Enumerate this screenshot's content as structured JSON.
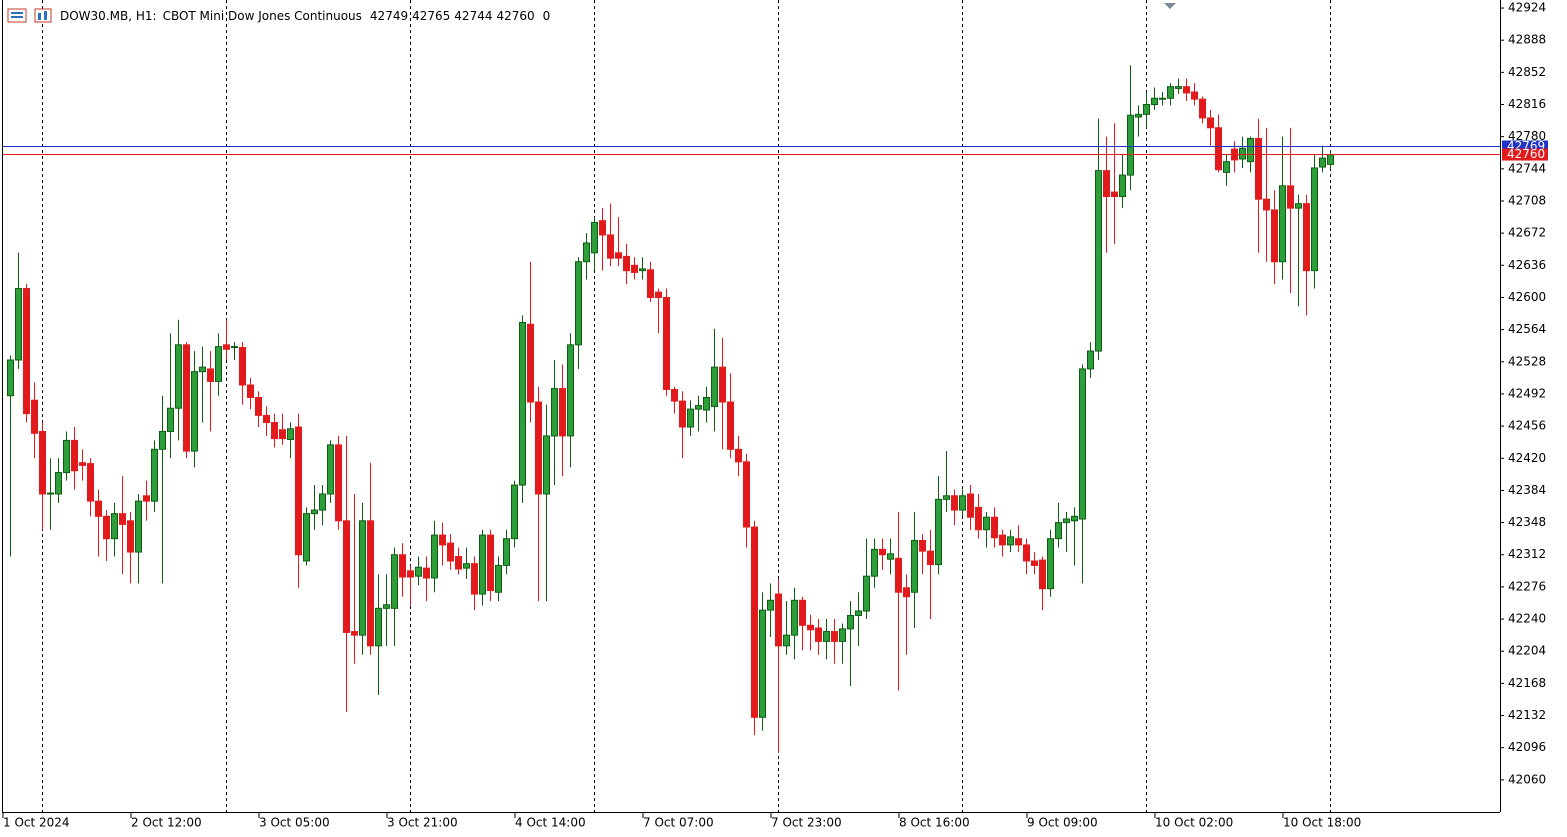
{
  "chart_data": {
    "type": "candlestick",
    "symbol": "DOW30.MB, H1:",
    "description": "CBOT Mini Dow Jones Continuous",
    "spread": 0,
    "up_color": "#2e9e3a",
    "up_outline": "#0b5e12",
    "down_color": "#e31a1c",
    "ylim": [
      42024,
      42933
    ],
    "yticks": [
      42924,
      42888,
      42852,
      42816,
      42780,
      42744,
      42708,
      42672,
      42636,
      42600,
      42564,
      42528,
      42492,
      42456,
      42420,
      42384,
      42348,
      42312,
      42276,
      42240,
      42204,
      42168,
      42132,
      42096,
      42060
    ],
    "price_lines": [
      {
        "value": 42769,
        "color": "#1e32c8"
      },
      {
        "value": 42760,
        "color": "#e31a1c"
      }
    ],
    "categories": [
      "1 Oct 2024",
      null,
      null,
      null,
      null,
      null,
      null,
      null,
      null,
      null,
      null,
      null,
      null,
      null,
      null,
      null,
      "2 Oct 12:00",
      null,
      null,
      null,
      null,
      null,
      null,
      null,
      null,
      null,
      null,
      null,
      null,
      null,
      null,
      null,
      "3 Oct 05:00",
      null,
      null,
      null,
      null,
      null,
      null,
      null,
      null,
      null,
      null,
      null,
      null,
      null,
      null,
      null,
      "3 Oct 21:00",
      null,
      null,
      null,
      null,
      null,
      null,
      null,
      null,
      null,
      null,
      null,
      null,
      null,
      null,
      null,
      "4 Oct 14:00",
      null,
      null,
      null,
      null,
      null,
      null,
      null,
      null,
      null,
      null,
      null,
      null,
      null,
      null,
      null,
      "7 Oct 07:00",
      null,
      null,
      null,
      null,
      null,
      null,
      null,
      null,
      null,
      null,
      null,
      null,
      null,
      null,
      null,
      "7 Oct 23:00",
      null,
      null,
      null,
      null,
      null,
      null,
      null,
      null,
      null,
      null,
      null,
      null,
      null,
      null,
      null,
      "8 Oct 16:00",
      null,
      null,
      null,
      null,
      null,
      null,
      null,
      null,
      null,
      null,
      null,
      null,
      null,
      null,
      null,
      "9 Oct 09:00",
      null,
      null,
      null,
      null,
      null,
      null,
      null,
      null,
      null,
      null,
      null,
      null,
      null,
      null,
      null,
      "10 Oct 02:00",
      null,
      null,
      null,
      null,
      null,
      null,
      null,
      null,
      null,
      null,
      null,
      null,
      null,
      null,
      null,
      "10 Oct 18:00",
      null,
      null,
      null,
      null,
      null
    ],
    "open": [
      42490,
      42530,
      42610,
      42485,
      42450,
      42380,
      42380,
      42404,
      42440,
      42415,
      42414,
      42372,
      42355,
      42330,
      42358,
      42350,
      42315,
      42378,
      42372,
      42430,
      42450,
      42476,
      42547,
      42428,
      42517,
      42520,
      42506,
      42547,
      42544,
      42544,
      42502,
      42488,
      42468,
      42460,
      42452,
      42441,
      42455,
      42305,
      42358,
      42362,
      42380,
      42435,
      42350,
      42226,
      42222,
      42350,
      42210,
      42252,
      42252,
      42312,
      42294,
      42288,
      42297,
      42286,
      42334,
      42325,
      42310,
      42297,
      42302,
      42268,
      42334,
      42270,
      42300,
      42330,
      42390,
      42570,
      42483,
      42380,
      42445,
      42498,
      42445,
      42547,
      42640,
      42650,
      42686,
      42670,
      42650,
      42646,
      42636,
      42630,
      42631,
      42606,
      42600,
      42497,
      42484,
      42455,
      42475,
      42474,
      42478,
      42522,
      42483,
      42430,
      42416,
      42343,
      42130,
      42250,
      42268,
      42210,
      42222,
      42261,
      42233,
      42230,
      42215,
      42226,
      42215,
      42229,
      42244,
      42249,
      42288,
      42318,
      42307,
      42308,
      42275,
      42270,
      42328,
      42316,
      42301,
      42374,
      42378,
      42362,
      42380,
      42365,
      42340,
      42354,
      42334,
      42323,
      42330,
      42323,
      42305,
      42306,
      42274,
      42330,
      42348,
      42350,
      42352,
      42520,
      42540,
      42742,
      42718,
      42713,
      42737,
      42802,
      42805,
      42816,
      42822,
      42823,
      42834,
      42836,
      42830,
      42822,
      42801,
      42790,
      42740,
      42766,
      42755,
      42752,
      42778,
      42710,
      42698,
      42640,
      42725,
      42700,
      42705,
      42630,
      42746,
      42749
    ],
    "high": [
      42535,
      42650,
      42615,
      42505,
      42460,
      42420,
      42420,
      42450,
      42455,
      42430,
      42420,
      42385,
      42362,
      42370,
      42400,
      42360,
      42380,
      42395,
      42440,
      42490,
      42560,
      42575,
      42550,
      42540,
      42545,
      42540,
      42560,
      42575,
      42550,
      42550,
      42510,
      42495,
      42478,
      42470,
      42470,
      42460,
      42470,
      42365,
      42390,
      42390,
      42440,
      42445,
      42445,
      42380,
      42370,
      42415,
      42290,
      42290,
      42320,
      42325,
      42300,
      42310,
      42310,
      42350,
      42348,
      42335,
      42320,
      42320,
      42310,
      42340,
      42340,
      42310,
      42340,
      42395,
      42580,
      42640,
      42500,
      42480,
      42530,
      42525,
      42560,
      42645,
      42672,
      42690,
      42700,
      42705,
      42690,
      42660,
      42645,
      42645,
      42640,
      42610,
      42610,
      42500,
      42495,
      42485,
      42490,
      42500,
      42565,
      42555,
      42515,
      42445,
      42425,
      42350,
      42270,
      42280,
      42285,
      42260,
      42275,
      42265,
      42245,
      42240,
      42240,
      42240,
      42235,
      42260,
      42270,
      42330,
      42330,
      42330,
      42330,
      42360,
      42290,
      42360,
      42335,
      42340,
      42400,
      42428,
      42385,
      42385,
      42390,
      42380,
      42360,
      42365,
      42340,
      42340,
      42345,
      42330,
      42315,
      42310,
      42340,
      42370,
      42360,
      42365,
      42525,
      42550,
      42800,
      42780,
      42795,
      42760,
      42860,
      42815,
      42830,
      42835,
      42830,
      42840,
      42845,
      42845,
      42840,
      42825,
      42810,
      42805,
      42760,
      42775,
      42780,
      42780,
      42800,
      42790,
      42720,
      42780,
      42790,
      42715,
      42715,
      42760,
      42770,
      42765
    ],
    "low": [
      42310,
      42520,
      42460,
      42420,
      42340,
      42340,
      42370,
      42395,
      42385,
      42395,
      42355,
      42310,
      42305,
      42310,
      42290,
      42280,
      42280,
      42350,
      42360,
      42280,
      42420,
      42440,
      42420,
      42410,
      42460,
      42450,
      42490,
      42530,
      42530,
      42480,
      42475,
      42455,
      42445,
      42432,
      42435,
      42420,
      42275,
      42300,
      42340,
      42345,
      42370,
      42340,
      42136,
      42190,
      42200,
      42200,
      42155,
      42210,
      42210,
      42265,
      42255,
      42278,
      42260,
      42270,
      42300,
      42295,
      42290,
      42285,
      42250,
      42255,
      42260,
      42260,
      42290,
      42320,
      42370,
      42460,
      42260,
      42260,
      42390,
      42400,
      42410,
      42520,
      42620,
      42630,
      42630,
      42635,
      42635,
      42615,
      42620,
      42620,
      42595,
      42560,
      42490,
      42470,
      42420,
      42445,
      42450,
      42460,
      42450,
      42430,
      42420,
      42400,
      42320,
      42110,
      42115,
      42220,
      42090,
      42200,
      42195,
      42205,
      42205,
      42200,
      42195,
      42190,
      42190,
      42165,
      42210,
      42240,
      42275,
      42295,
      42290,
      42160,
      42200,
      42230,
      42290,
      42240,
      42290,
      42360,
      42345,
      42355,
      42340,
      42330,
      42320,
      42320,
      42310,
      42315,
      42315,
      42290,
      42290,
      42250,
      42265,
      42320,
      42315,
      42300,
      42280,
      42510,
      42530,
      42650,
      42660,
      42700,
      42720,
      42780,
      42790,
      42810,
      42815,
      42815,
      42828,
      42820,
      42815,
      42795,
      42770,
      42740,
      42725,
      42740,
      42745,
      42740,
      42650,
      42640,
      42615,
      42620,
      42605,
      42590,
      42580,
      42610,
      42740,
      42744
    ],
    "close": [
      42530,
      42610,
      42470,
      42448,
      42380,
      42381,
      42404,
      42440,
      42406,
      42412,
      42372,
      42355,
      42330,
      42358,
      42346,
      42315,
      42372,
      42372,
      42430,
      42450,
      42476,
      42547,
      42428,
      42517,
      42522,
      42506,
      42545,
      42542,
      42545,
      42502,
      42488,
      42468,
      42460,
      42442,
      42442,
      42453,
      42312,
      42358,
      42362,
      42380,
      42435,
      42350,
      42225,
      42222,
      42350,
      42210,
      42252,
      42256,
      42312,
      42287,
      42287,
      42298,
      42286,
      42334,
      42323,
      42305,
      42296,
      42302,
      42268,
      42334,
      42272,
      42300,
      42330,
      42390,
      42572,
      42483,
      42380,
      42445,
      42498,
      42445,
      42547,
      42640,
      42661,
      42684,
      42670,
      42644,
      42644,
      42630,
      42628,
      42632,
      42600,
      42600,
      42497,
      42484,
      42455,
      42475,
      42479,
      42488,
      42522,
      42483,
      42430,
      42416,
      42343,
      42130,
      42250,
      42261,
      42210,
      42222,
      42261,
      42233,
      42228,
      42215,
      42226,
      42215,
      42229,
      42244,
      42249,
      42288,
      42318,
      42312,
      42313,
      42270,
      42265,
      42328,
      42316,
      42301,
      42374,
      42378,
      42362,
      42378,
      42354,
      42340,
      42354,
      42331,
      42323,
      42332,
      42323,
      42305,
      42300,
      42274,
      42330,
      42348,
      42352,
      42355,
      42520,
      42540,
      42742,
      42713,
      42713,
      42737,
      42804,
      42805,
      42816,
      42823,
      42823,
      42836,
      42836,
      42829,
      42822,
      42801,
      42790,
      42743,
      42752,
      42754,
      42767,
      42778,
      42710,
      42698,
      42640,
      42725,
      42700,
      42705,
      42630,
      42745,
      42756,
      42760
    ]
  }
}
